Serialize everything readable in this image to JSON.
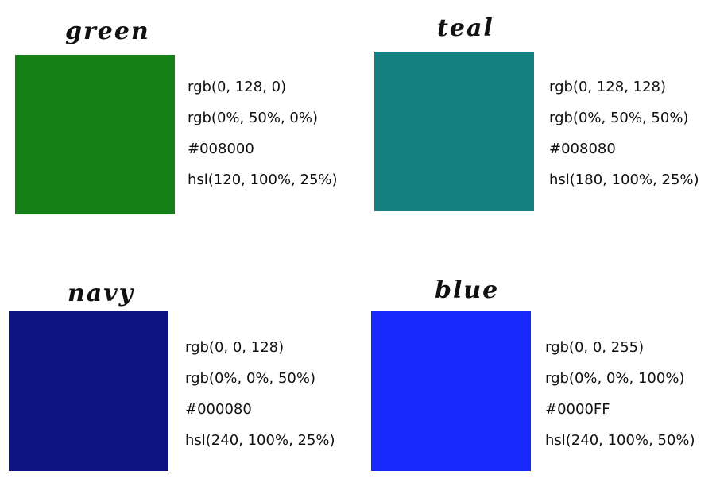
{
  "cards": [
    {
      "name": "green",
      "swatch_color": "#158015",
      "values": [
        "rgb(0, 128, 0)",
        "rgb(0%, 50%, 0%)",
        "#008000",
        "hsl(120, 100%, 25%)"
      ]
    },
    {
      "name": "teal",
      "swatch_color": "#158080",
      "values": [
        "rgb(0, 128, 128)",
        "rgb(0%, 50%, 50%)",
        "#008080",
        "hsl(180, 100%, 25%)"
      ]
    },
    {
      "name": "navy",
      "swatch_color": "#0b1481",
      "values": [
        "rgb(0, 0, 128)",
        "rgb(0%, 0%, 50%)",
        "#000080",
        "hsl(240, 100%, 25%)"
      ]
    },
    {
      "name": "blue",
      "swatch_color": "#1729fb",
      "values": [
        "rgb(0, 0, 255)",
        "rgb(0%, 0%, 100%)",
        "#0000FF",
        "hsl(240, 100%, 50%)"
      ]
    }
  ]
}
